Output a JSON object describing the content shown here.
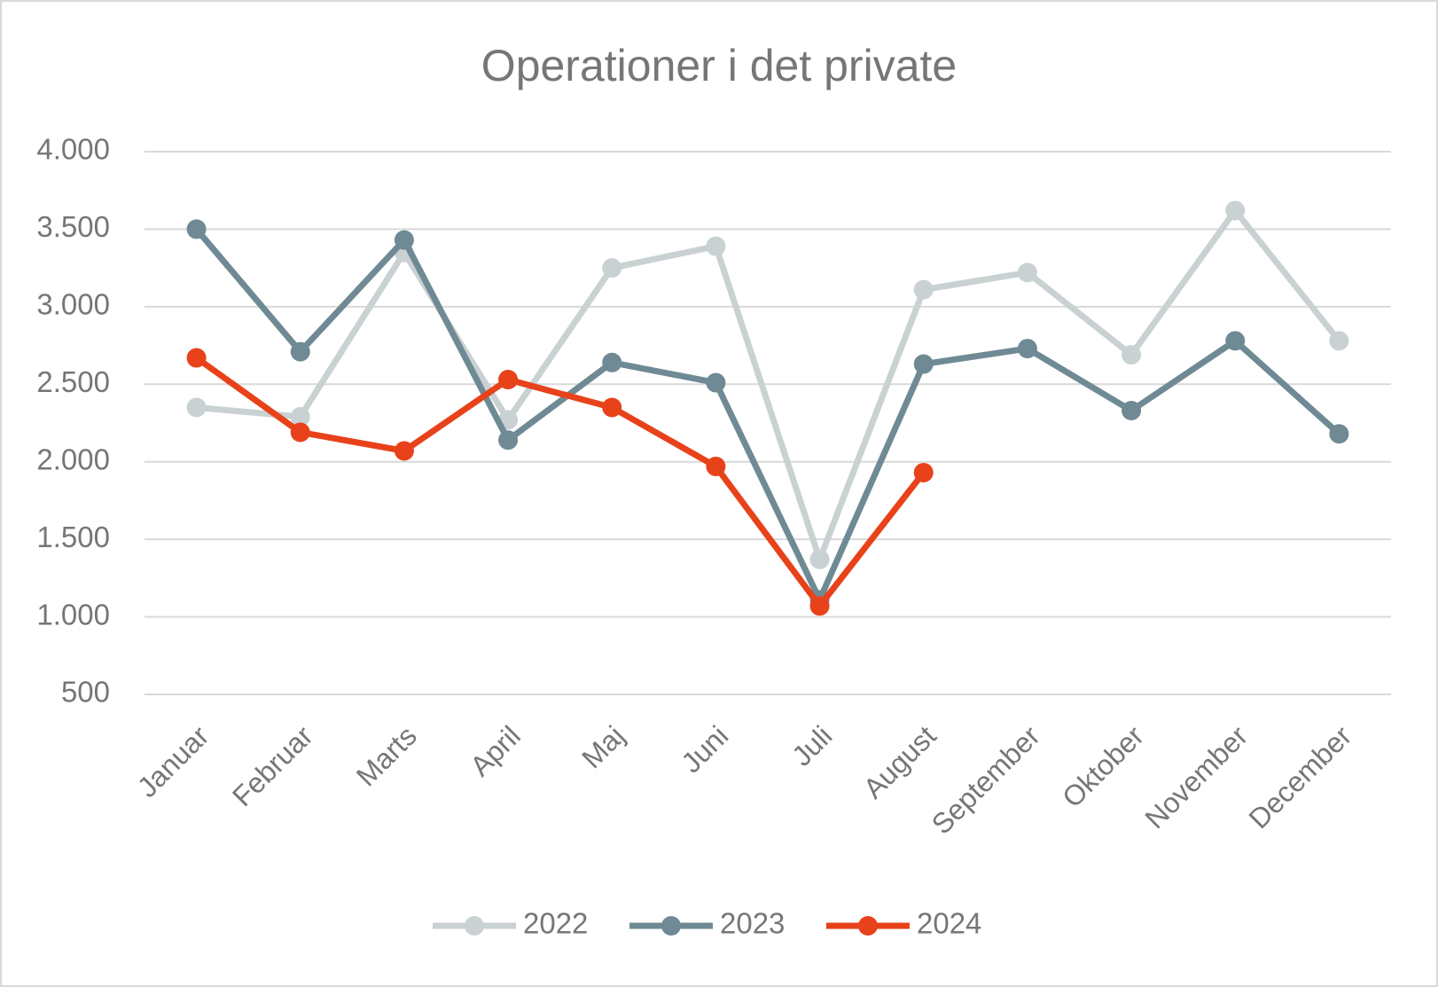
{
  "chart_data": {
    "type": "line",
    "title": "Operationer i det private",
    "categories": [
      "Januar",
      "Februar",
      "Marts",
      "April",
      "Maj",
      "Juni",
      "Juli",
      "August",
      "September",
      "Oktober",
      "November",
      "December"
    ],
    "series": [
      {
        "name": "2022",
        "color": "#c9d1d3",
        "values": [
          2350,
          2290,
          3350,
          2270,
          3250,
          3390,
          1370,
          3110,
          3220,
          2690,
          3620,
          2780
        ]
      },
      {
        "name": "2023",
        "color": "#6f8a94",
        "values": [
          3500,
          2710,
          3430,
          2140,
          2640,
          2510,
          1110,
          2630,
          2730,
          2330,
          2780,
          2180
        ]
      },
      {
        "name": "2024",
        "color": "#e8421a",
        "values": [
          2670,
          2190,
          2070,
          2530,
          2350,
          1970,
          1070,
          1930,
          null,
          null,
          null,
          null
        ]
      }
    ],
    "ylim": [
      500,
      4000
    ],
    "yticks": [
      {
        "value": 500,
        "label": "500"
      },
      {
        "value": 1000,
        "label": "1.000"
      },
      {
        "value": 1500,
        "label": "1.500"
      },
      {
        "value": 2000,
        "label": "2.000"
      },
      {
        "value": 2500,
        "label": "2.500"
      },
      {
        "value": 3000,
        "label": "3.000"
      },
      {
        "value": 3500,
        "label": "3.500"
      },
      {
        "value": 4000,
        "label": "4.000"
      }
    ],
    "grid": true,
    "legend": "bottom"
  }
}
